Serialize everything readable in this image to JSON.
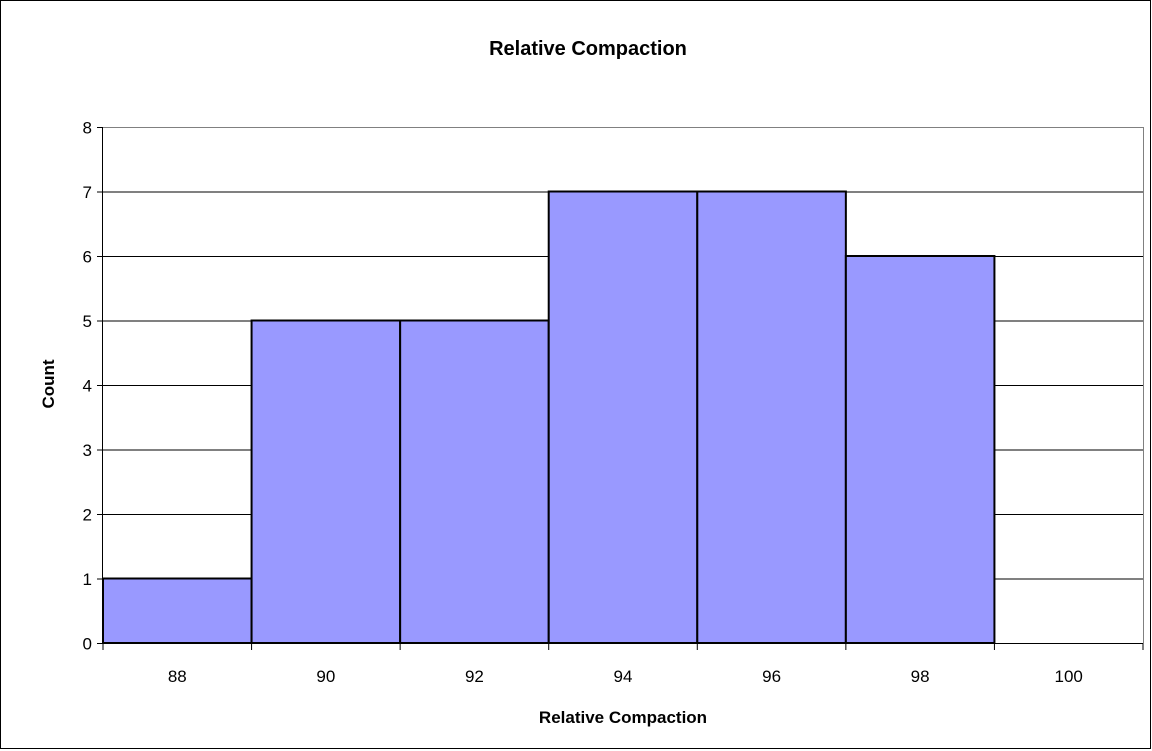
{
  "chart_data": {
    "type": "bar",
    "title": "Relative Compaction",
    "xlabel": "Relative Compaction",
    "ylabel": "Count",
    "categories": [
      "88",
      "90",
      "92",
      "94",
      "96",
      "98",
      "100"
    ],
    "values": [
      1,
      5,
      5,
      7,
      7,
      6,
      0
    ],
    "ylim": [
      0,
      8
    ],
    "yticks": [
      "0",
      "1",
      "2",
      "3",
      "4",
      "5",
      "6",
      "7",
      "8"
    ],
    "grid": true,
    "legend": "none",
    "colors": {
      "bar_fill": "#9999ff",
      "bar_stroke": "#000000",
      "grid": "#000000",
      "axis": "#808080",
      "background": "#ffffff"
    }
  }
}
